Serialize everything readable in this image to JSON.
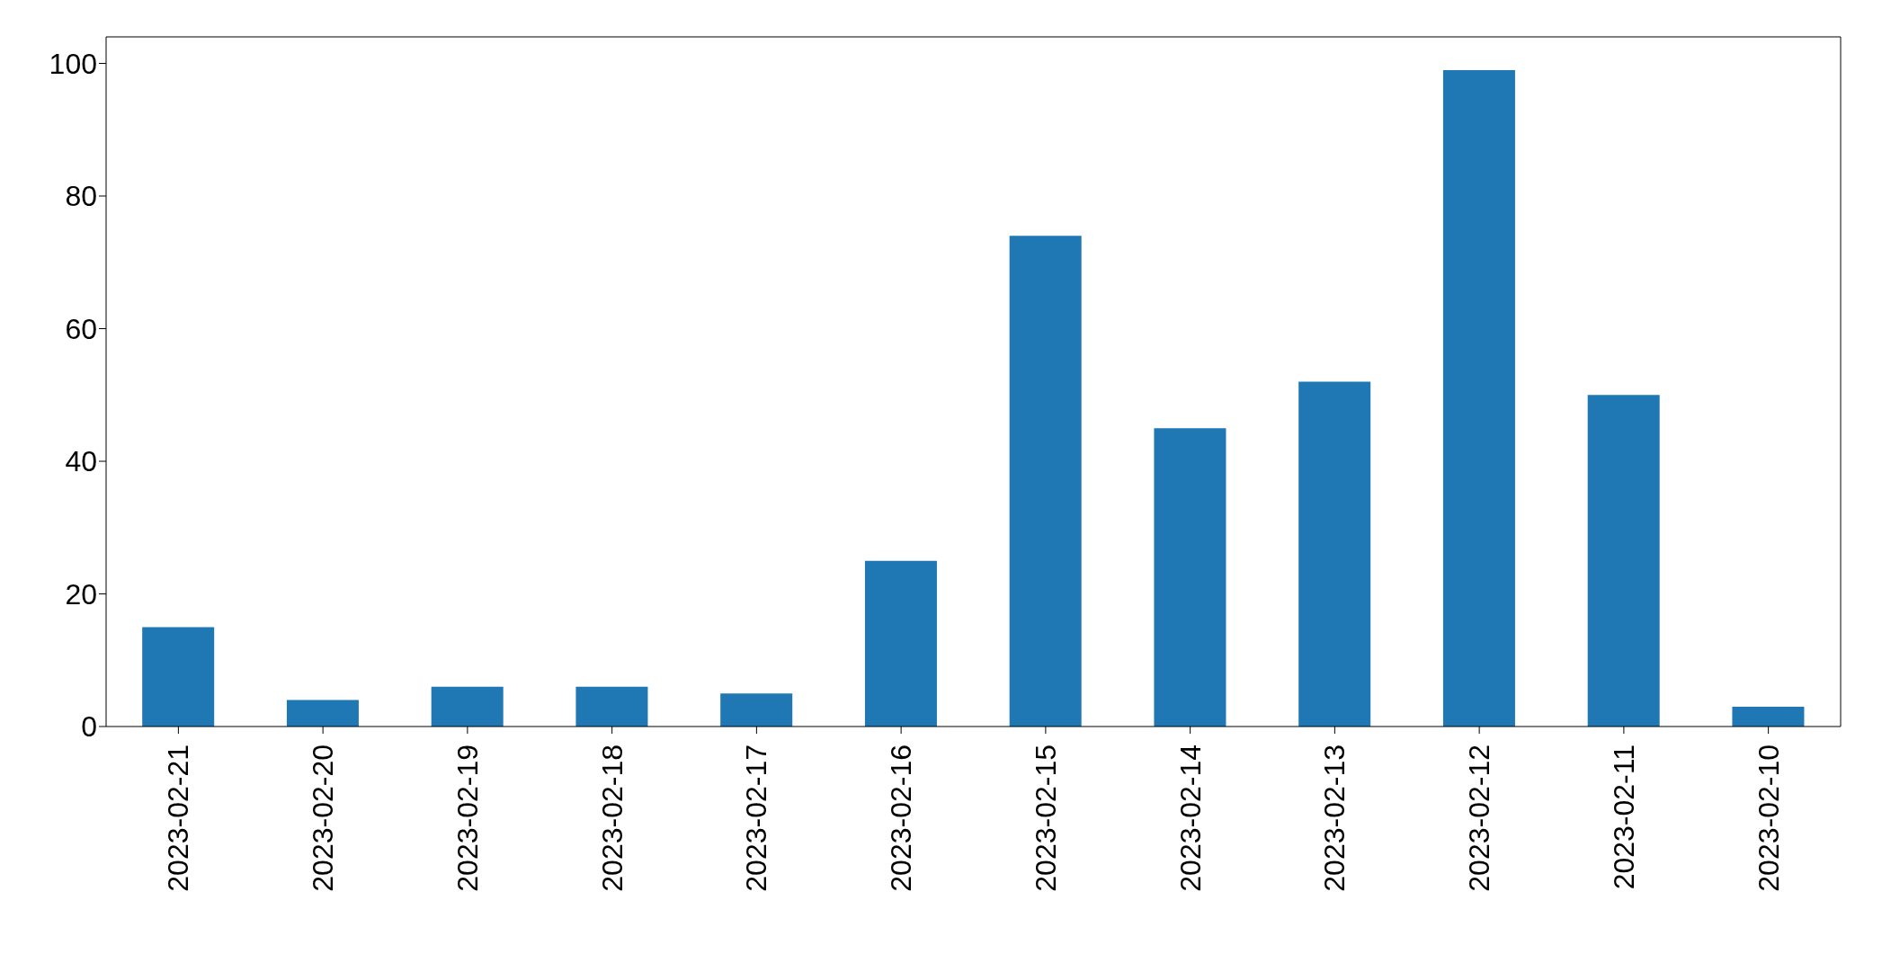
{
  "chart_data": {
    "type": "bar",
    "categories": [
      "2023-02-21",
      "2023-02-20",
      "2023-02-19",
      "2023-02-18",
      "2023-02-17",
      "2023-02-16",
      "2023-02-15",
      "2023-02-14",
      "2023-02-13",
      "2023-02-12",
      "2023-02-11",
      "2023-02-10"
    ],
    "values": [
      15,
      4,
      6,
      6,
      5,
      25,
      74,
      45,
      52,
      99,
      50,
      3
    ],
    "color": "#1f77b4",
    "ylim": [
      0,
      104
    ],
    "yticks": [
      0,
      20,
      40,
      60,
      80,
      100
    ],
    "grid": false,
    "legend": false
  }
}
